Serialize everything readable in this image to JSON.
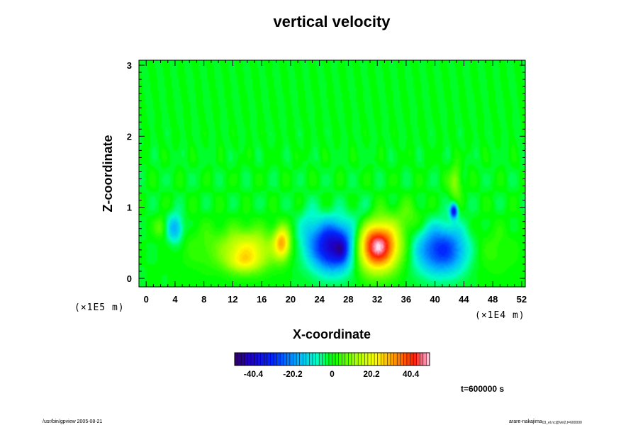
{
  "chart_data": {
    "type": "heatmap",
    "title": "vertical velocity",
    "xlabel": "X-coordinate",
    "ylabel": "Z-coordinate",
    "x_scale_note": "(×1E4 m)",
    "y_scale_note": "(×1E5 m)",
    "xlim": [
      -1,
      52.5
    ],
    "ylim": [
      -0.12,
      3.07
    ],
    "x_ticks": [
      0,
      4,
      8,
      12,
      16,
      20,
      24,
      28,
      32,
      36,
      40,
      44,
      48,
      52
    ],
    "y_ticks": [
      0,
      1,
      2,
      3
    ],
    "colorbar": {
      "range": [
        -50,
        50
      ],
      "tick_values": [
        -40.4,
        -20.2,
        0,
        20.2,
        40.4
      ],
      "tick_labels": [
        "-40.4",
        "-20.2",
        "0",
        "20.2",
        "40.4"
      ],
      "num_levels": 60
    },
    "background_value": 0,
    "features": [
      {
        "x": 14.0,
        "z": 0.4,
        "amp": 22,
        "sx": 2.6,
        "sz": 0.2
      },
      {
        "x": 18.8,
        "z": 0.5,
        "amp": 28,
        "sx": 0.8,
        "sz": 0.16
      },
      {
        "x": 13.5,
        "z": 0.22,
        "amp": 10,
        "sx": 1.6,
        "sz": 0.1
      },
      {
        "x": 26.0,
        "z": 0.45,
        "amp": -42,
        "sx": 2.3,
        "sz": 0.24
      },
      {
        "x": 27.0,
        "z": 0.4,
        "amp": -10,
        "sx": 0.5,
        "sz": 0.1
      },
      {
        "x": 32.0,
        "z": 0.45,
        "amp": 52,
        "sx": 2.1,
        "sz": 0.24
      },
      {
        "x": 41.0,
        "z": 0.4,
        "amp": -30,
        "sx": 2.6,
        "sz": 0.24
      },
      {
        "x": 42.6,
        "z": 0.95,
        "amp": -35,
        "sx": 0.35,
        "sz": 0.07
      },
      {
        "x": 42.8,
        "z": 1.35,
        "amp": 12,
        "sx": 0.6,
        "sz": 0.16
      },
      {
        "x": 4.0,
        "z": 0.7,
        "amp": -18,
        "sx": 0.8,
        "sz": 0.14
      },
      {
        "x": 2.0,
        "z": 0.72,
        "amp": 8,
        "sx": 0.6,
        "sz": 0.1
      },
      {
        "x": 36.5,
        "z": 0.85,
        "amp": 6,
        "sx": 1.6,
        "sz": 0.18
      },
      {
        "x": 47.0,
        "z": 0.4,
        "amp": 5,
        "sx": 3.0,
        "sz": 0.25
      },
      {
        "x": 7.5,
        "z": 0.45,
        "amp": 4,
        "sx": 2.5,
        "sz": 0.25
      },
      {
        "x": 22.5,
        "z": 0.75,
        "amp": -6,
        "sx": 1.0,
        "sz": 0.2
      },
      {
        "x": 30.0,
        "z": 0.85,
        "amp": -5,
        "sx": 1.2,
        "sz": 0.18
      }
    ]
  },
  "time_label": "t=600000 s",
  "footer_left": "/usr/bin/gpview 2005-08-21",
  "footer_right_main": "arare-nakajima",
  "footer_right_sub": "03_el.nc@Vel2,t=600000"
}
